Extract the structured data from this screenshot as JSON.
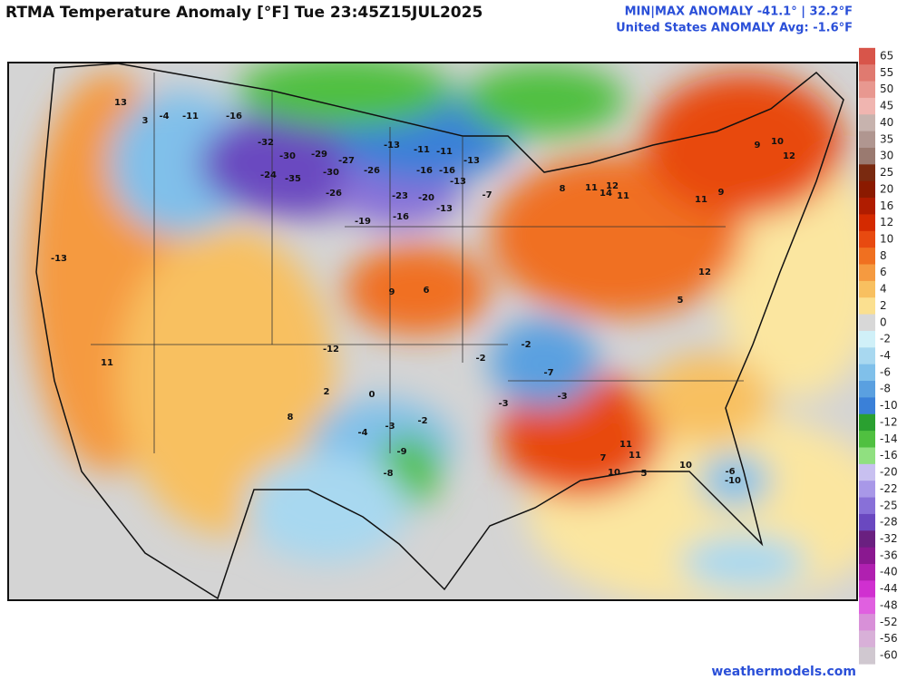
{
  "header": {
    "title": "RTMA Temperature Anomaly [°F]  Tue 23:45Z15JUL2025",
    "min_max": "MIN|MAX ANOMALY -41.1° | 32.2°F",
    "avg": "United States ANOMALY Avg: -1.6°F"
  },
  "colorbar": {
    "levels": [
      65,
      55,
      50,
      45,
      40,
      35,
      30,
      25,
      20,
      16,
      12,
      10,
      8,
      6,
      4,
      2,
      0,
      -2,
      -4,
      -6,
      -8,
      -10,
      -12,
      -14,
      -16,
      -20,
      -22,
      -25,
      -28,
      -32,
      -36,
      -40,
      -44,
      -48,
      -52,
      -56,
      -60
    ],
    "colors": [
      "#d8554a",
      "#e07a70",
      "#e89890",
      "#f0b5b0",
      "#c7b3ae",
      "#b09690",
      "#9a7a70",
      "#7a2a10",
      "#8b1a00",
      "#b01c00",
      "#d42a00",
      "#e84a10",
      "#f07020",
      "#f59a40",
      "#f8c060",
      "#fbe090",
      "#d8d8d8",
      "#d0f0f8",
      "#a8d8f0",
      "#80c0ea",
      "#5aa0e0",
      "#3a80d8",
      "#2aa030",
      "#50c040",
      "#90e080",
      "#c8c0f0",
      "#a898e8",
      "#8870d8",
      "#6a48c0",
      "#6a2080",
      "#8a1890",
      "#b020b0",
      "#d030d0",
      "#e060e0",
      "#d890d8",
      "#d8b0d8",
      "#d0c8d0"
    ]
  },
  "map": {
    "labels": [
      13,
      3,
      -4,
      -11,
      -16,
      -32,
      -30,
      -29,
      -27,
      -26,
      -35,
      -24,
      -30,
      -26,
      -23,
      -20,
      -16,
      -19,
      -13,
      -11,
      -11,
      -13,
      -16,
      -16,
      -13,
      -13,
      -7,
      9,
      6,
      8,
      11,
      12,
      14,
      11,
      11,
      9,
      9,
      10,
      12,
      12,
      5,
      -7,
      -3,
      7,
      11,
      11,
      10,
      5,
      10,
      -6,
      -10,
      -9,
      -8,
      -4,
      -3,
      -2,
      -12,
      11,
      -13,
      -2,
      -2,
      -3,
      8,
      2,
      0
    ]
  },
  "footer": {
    "credit": "weathermodels.com"
  }
}
